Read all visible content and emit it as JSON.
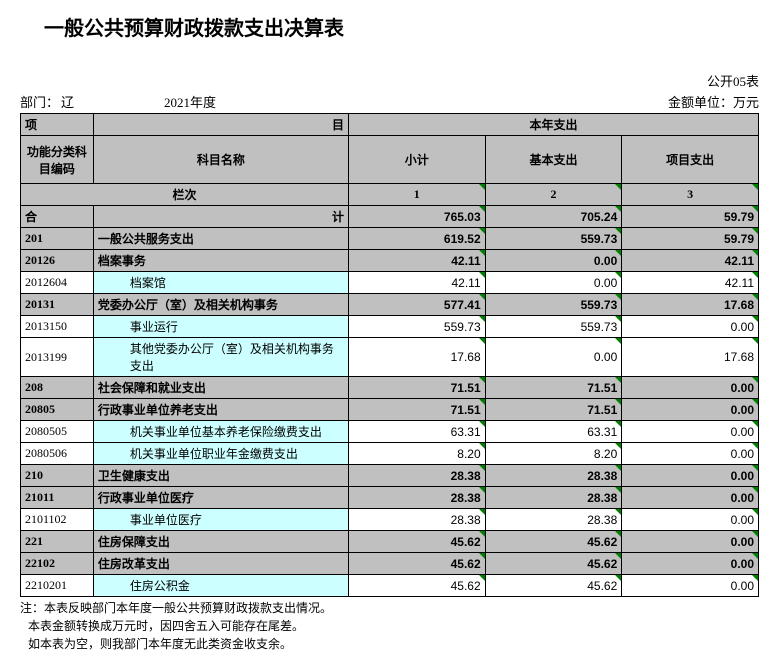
{
  "title": "一般公共预算财政拨款支出决算表",
  "form_no": "公开05表",
  "dept_label": "部门：",
  "dept_value": "辽",
  "year": "2021年度",
  "unit": "金额单位：万元",
  "headers": {
    "project": "项",
    "mu": "目",
    "this_year": "本年支出",
    "code": "功能分类科目编码",
    "name": "科目名称",
    "subtotal": "小计",
    "basic": "基本支出",
    "proj": "项目支出",
    "lanci": "栏次",
    "c1": "1",
    "c2": "2",
    "c3": "3",
    "heji_a": "合",
    "heji_b": "计"
  },
  "total": {
    "subtotal": "765.03",
    "basic": "705.24",
    "proj": "59.79"
  },
  "rows": [
    {
      "level": 0,
      "code": "201",
      "name": "一般公共服务支出",
      "subtotal": "619.52",
      "basic": "559.73",
      "proj": "59.79",
      "style": "grey"
    },
    {
      "level": 0,
      "code": "20126",
      "name": "档案事务",
      "subtotal": "42.11",
      "basic": "0.00",
      "proj": "42.11",
      "style": "grey"
    },
    {
      "level": 1,
      "code": "2012604",
      "name": "档案馆",
      "subtotal": "42.11",
      "basic": "0.00",
      "proj": "42.11",
      "style": "cyan"
    },
    {
      "level": 0,
      "code": "20131",
      "name": "党委办公厅（室）及相关机构事务",
      "subtotal": "577.41",
      "basic": "559.73",
      "proj": "17.68",
      "style": "grey"
    },
    {
      "level": 1,
      "code": "2013150",
      "name": "事业运行",
      "subtotal": "559.73",
      "basic": "559.73",
      "proj": "0.00",
      "style": "cyan"
    },
    {
      "level": 1,
      "code": "2013199",
      "name": "其他党委办公厅（室）及相关机构事务支出",
      "subtotal": "17.68",
      "basic": "0.00",
      "proj": "17.68",
      "style": "cyan"
    },
    {
      "level": 0,
      "code": "208",
      "name": "社会保障和就业支出",
      "subtotal": "71.51",
      "basic": "71.51",
      "proj": "0.00",
      "style": "grey"
    },
    {
      "level": 0,
      "code": "20805",
      "name": "行政事业单位养老支出",
      "subtotal": "71.51",
      "basic": "71.51",
      "proj": "0.00",
      "style": "grey"
    },
    {
      "level": 1,
      "code": "2080505",
      "name": "机关事业单位基本养老保险缴费支出",
      "subtotal": "63.31",
      "basic": "63.31",
      "proj": "0.00",
      "style": "cyan"
    },
    {
      "level": 1,
      "code": "2080506",
      "name": "机关事业单位职业年金缴费支出",
      "subtotal": "8.20",
      "basic": "8.20",
      "proj": "0.00",
      "style": "cyan"
    },
    {
      "level": 0,
      "code": "210",
      "name": "卫生健康支出",
      "subtotal": "28.38",
      "basic": "28.38",
      "proj": "0.00",
      "style": "grey"
    },
    {
      "level": 0,
      "code": "21011",
      "name": "行政事业单位医疗",
      "subtotal": "28.38",
      "basic": "28.38",
      "proj": "0.00",
      "style": "grey"
    },
    {
      "level": 1,
      "code": "2101102",
      "name": "事业单位医疗",
      "subtotal": "28.38",
      "basic": "28.38",
      "proj": "0.00",
      "style": "cyan"
    },
    {
      "level": 0,
      "code": "221",
      "name": "住房保障支出",
      "subtotal": "45.62",
      "basic": "45.62",
      "proj": "0.00",
      "style": "grey"
    },
    {
      "level": 0,
      "code": "22102",
      "name": "住房改革支出",
      "subtotal": "45.62",
      "basic": "45.62",
      "proj": "0.00",
      "style": "grey"
    },
    {
      "level": 1,
      "code": "2210201",
      "name": "住房公积金",
      "subtotal": "45.62",
      "basic": "45.62",
      "proj": "0.00",
      "style": "cyan"
    }
  ],
  "notes": [
    "注：本表反映部门本年度一般公共预算财政拨款支出情况。",
    "本表金额转换成万元时，因四舍五入可能存在尾差。",
    "如本表为空，则我部门本年度无此类资金收支余。"
  ],
  "colors": {
    "grey": "#c0c0c0",
    "cyan": "#ccffff",
    "corner": "#008000",
    "border": "#000000",
    "bg": "#ffffff"
  }
}
